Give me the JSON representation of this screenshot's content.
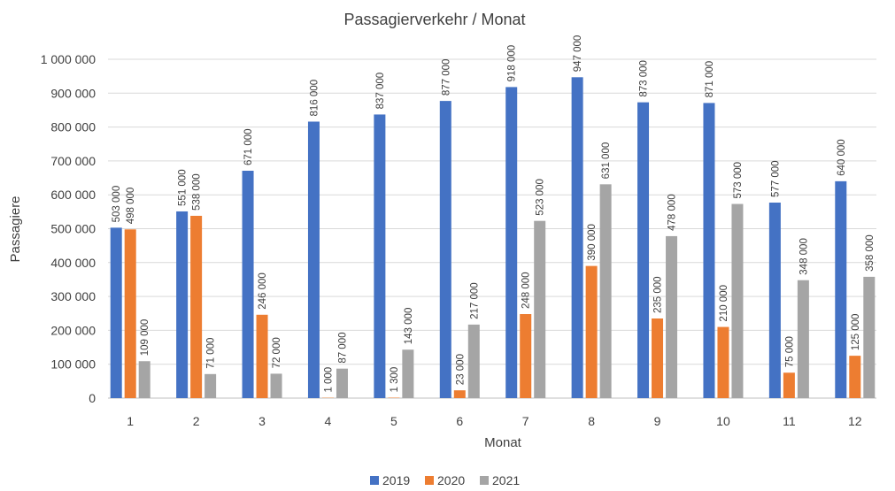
{
  "chart_data": {
    "type": "bar",
    "title": "Passagierverkehr / Monat",
    "xlabel": "Monat",
    "ylabel": "Passagiere",
    "categories": [
      "1",
      "2",
      "3",
      "4",
      "5",
      "6",
      "7",
      "8",
      "9",
      "10",
      "11",
      "12"
    ],
    "ylim": [
      0,
      1000000
    ],
    "yticks": [
      0,
      100000,
      200000,
      300000,
      400000,
      500000,
      600000,
      700000,
      800000,
      900000,
      1000000
    ],
    "ytick_labels": [
      "0",
      "100 000",
      "200 000",
      "300 000",
      "400 000",
      "500 000",
      "600 000",
      "700 000",
      "800 000",
      "900 000",
      "1 000 000"
    ],
    "grid": true,
    "legend": "bottom",
    "series": [
      {
        "name": "2019",
        "color": "#4472c4",
        "values": [
          503000,
          551000,
          671000,
          816000,
          837000,
          877000,
          918000,
          947000,
          873000,
          871000,
          577000,
          640000
        ],
        "labels": [
          "503 000",
          "551 000",
          "671 000",
          "816 000",
          "837 000",
          "877 000",
          "918 000",
          "947 000",
          "873 000",
          "871 000",
          "577 000",
          "640 000"
        ]
      },
      {
        "name": "2020",
        "color": "#ed7d31",
        "values": [
          498000,
          538000,
          246000,
          1000,
          1300,
          23000,
          248000,
          390000,
          235000,
          210000,
          75000,
          125000
        ],
        "labels": [
          "498 000",
          "538 000",
          "246 000",
          "1 000",
          "1 300",
          "23 000",
          "248 000",
          "390 000",
          "235 000",
          "210 000",
          "75 000",
          "125 000"
        ]
      },
      {
        "name": "2021",
        "color": "#a5a5a5",
        "values": [
          109000,
          71000,
          72000,
          87000,
          143000,
          217000,
          523000,
          631000,
          478000,
          573000,
          348000,
          358000
        ],
        "labels": [
          "109 000",
          "71 000",
          "72 000",
          "87 000",
          "143 000",
          "217 000",
          "523 000",
          "631 000",
          "478 000",
          "573 000",
          "348 000",
          "358 000"
        ]
      }
    ]
  }
}
